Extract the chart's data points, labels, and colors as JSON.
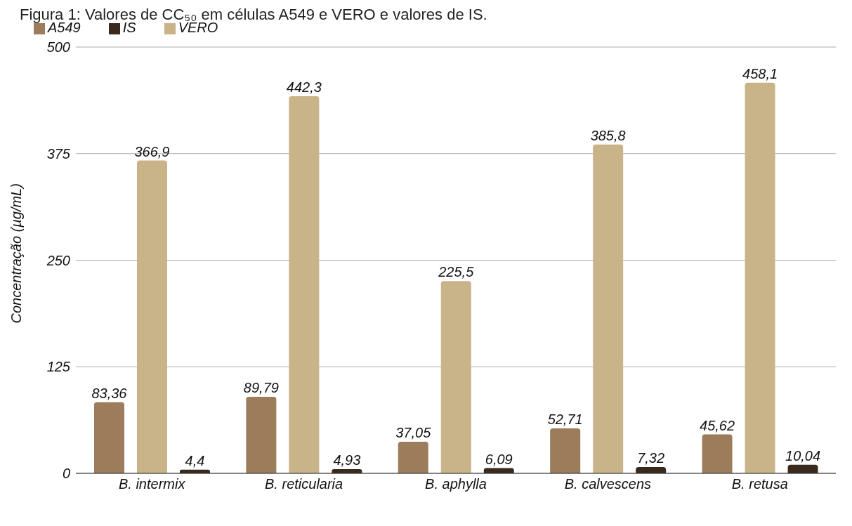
{
  "chart_data": {
    "type": "bar",
    "title": "Figura 1: Valores de CC₅₀ em células A549 e VERO e valores de IS.",
    "ylabel": "Concentração (µg/mL)",
    "categories": [
      "B. intermix",
      "B. reticularia",
      "B. aphylla",
      "B. calvescens",
      "B. retusa"
    ],
    "series": [
      {
        "name": "A549",
        "color": "#9c7c5a",
        "values": [
          83.36,
          89.79,
          37.05,
          52.71,
          45.62
        ],
        "value_labels": [
          "83,36",
          "89,79",
          "37,05",
          "52,71",
          "45,62"
        ]
      },
      {
        "name": "VERO",
        "color": "#c8b488",
        "values": [
          366.9,
          442.3,
          225.5,
          385.8,
          458.1
        ],
        "value_labels": [
          "366,9",
          "442,3",
          "225,5",
          "385,8",
          "458,1"
        ]
      },
      {
        "name": "IS",
        "color": "#3a2a1e",
        "values": [
          4.4,
          4.93,
          6.09,
          7.32,
          10.04
        ],
        "value_labels": [
          "4,4",
          "4,93",
          "6,09",
          "7,32",
          "10,04"
        ]
      }
    ],
    "ylim": [
      0,
      500
    ],
    "yticks": [
      0,
      125,
      250,
      375,
      500
    ],
    "grid": "y",
    "legend": "top left"
  }
}
